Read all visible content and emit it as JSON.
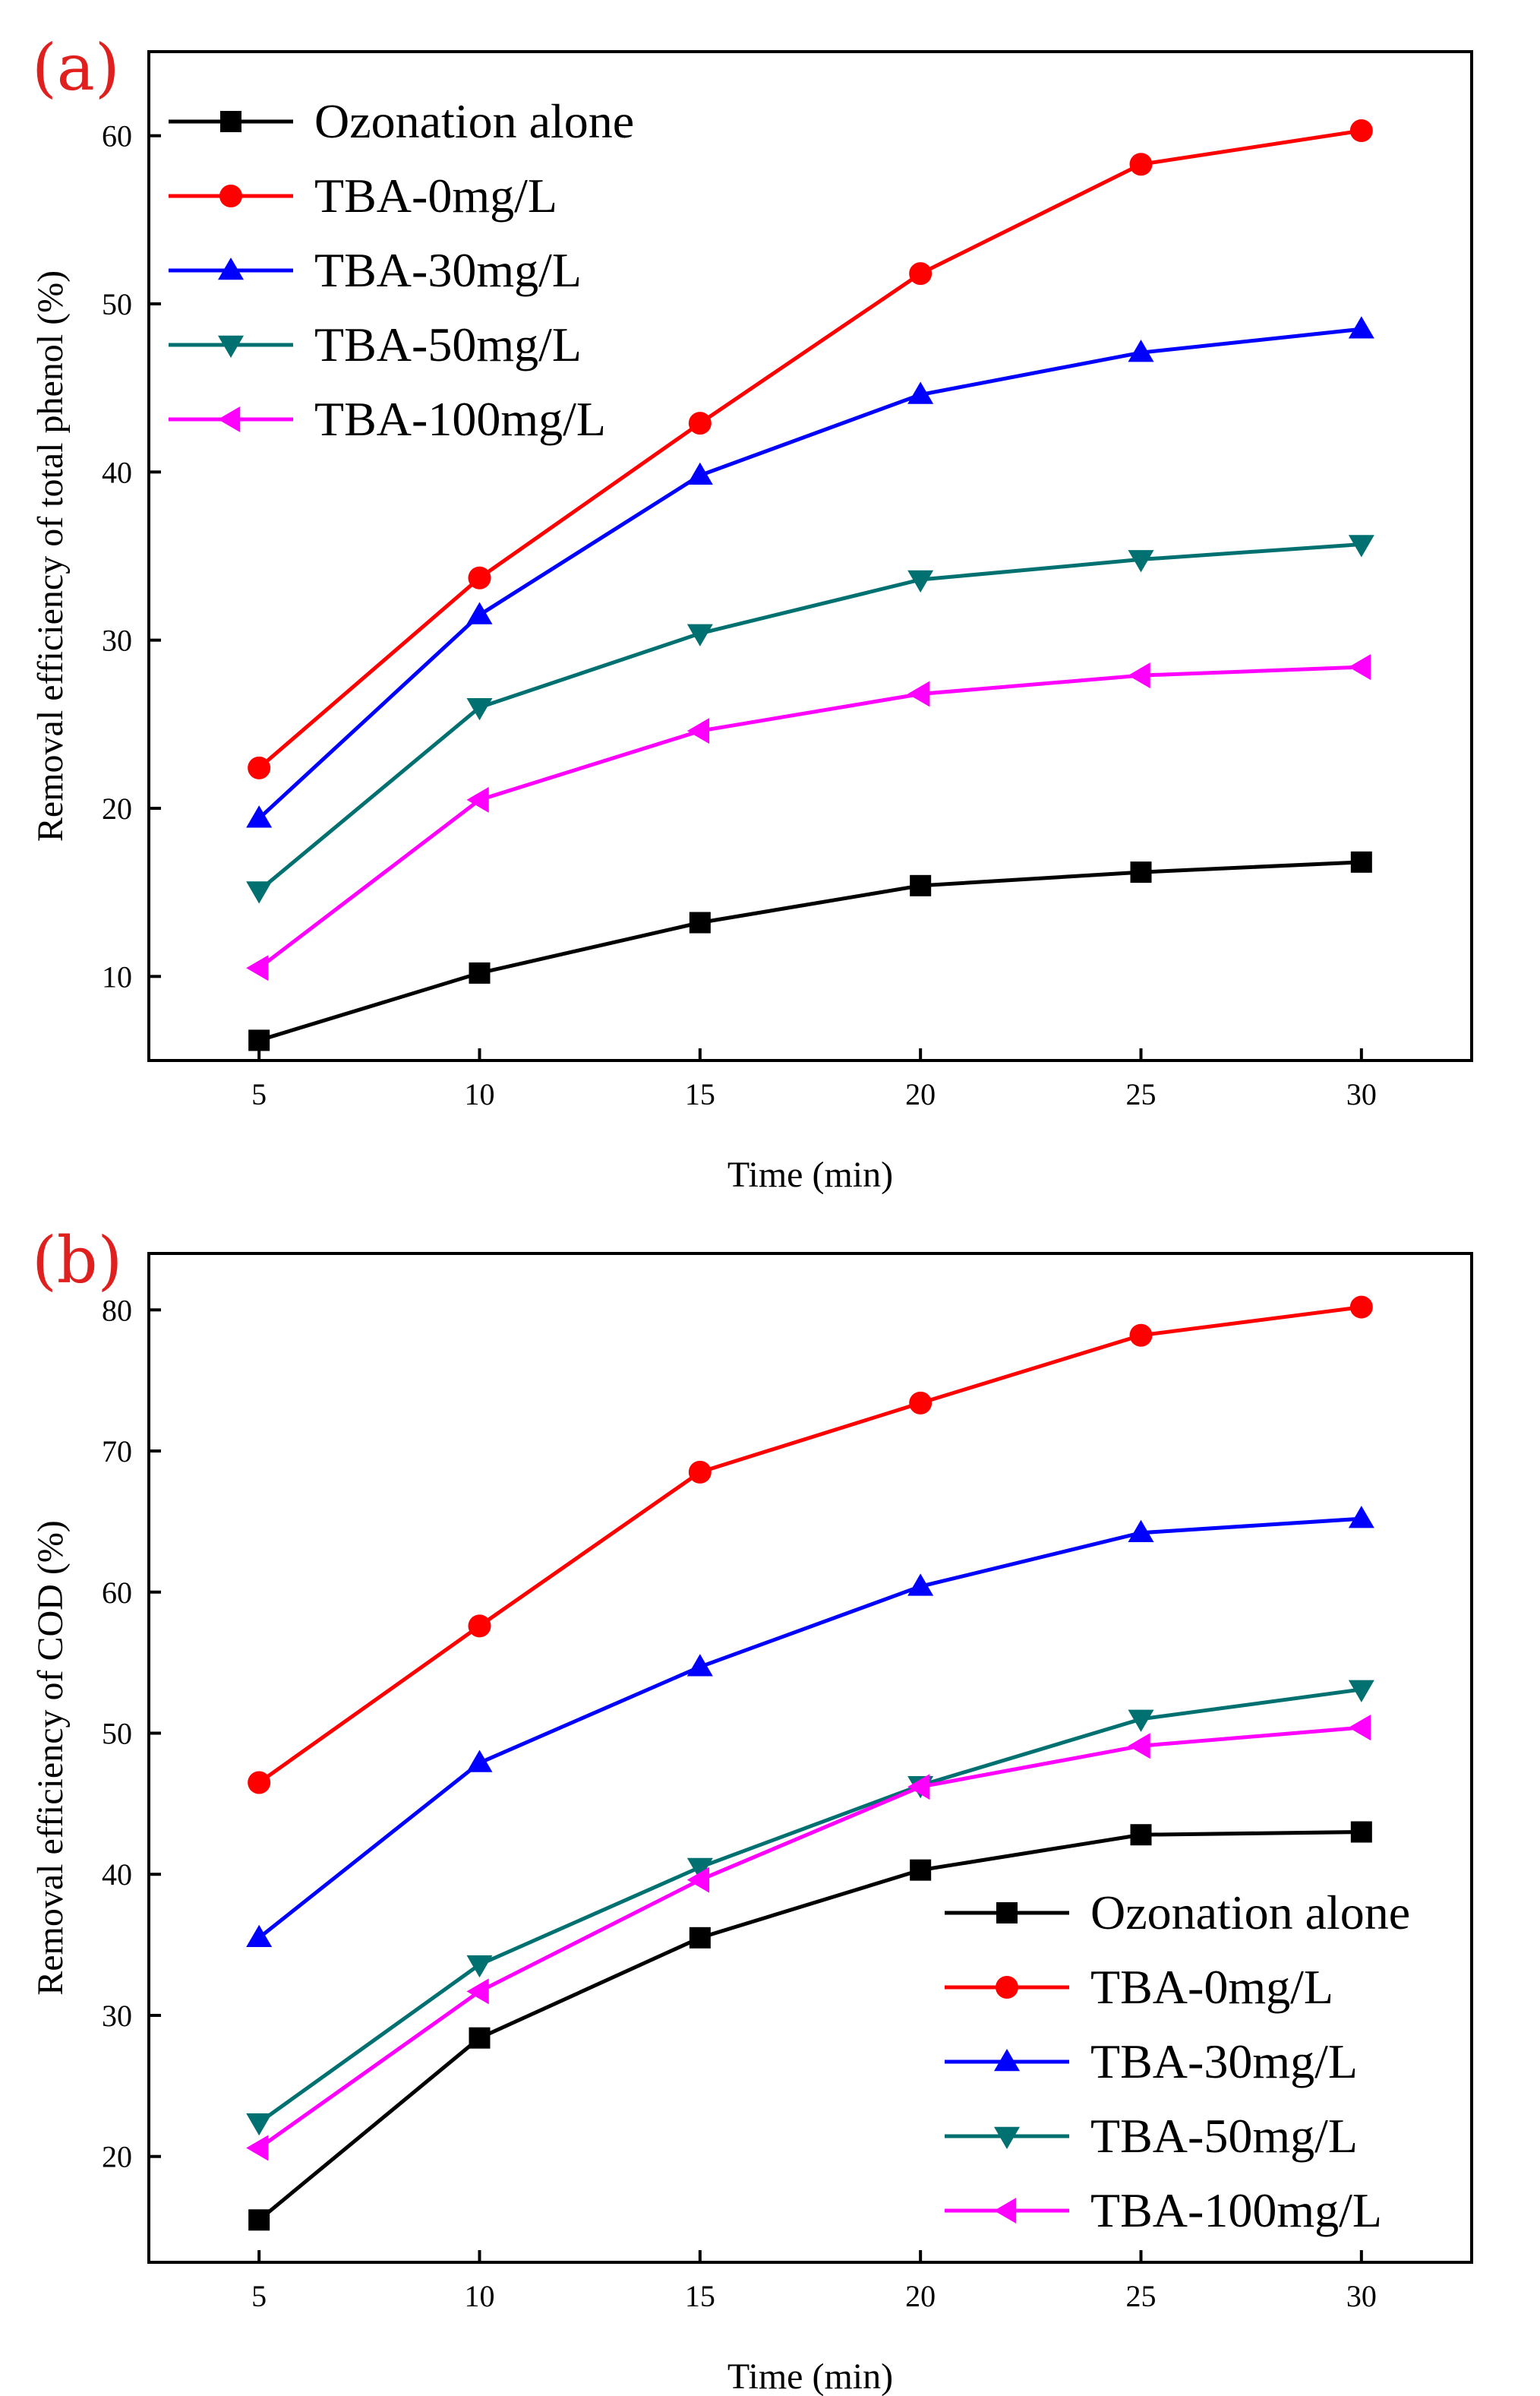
{
  "chart_data": [
    {
      "panel_label": "(a)",
      "type": "line",
      "title": "",
      "xlabel": "Time (min)",
      "ylabel": "Removal efficiency of total phenol (%)",
      "xlim": [
        2.5,
        32.5
      ],
      "ylim": [
        5,
        65
      ],
      "xticks": [
        5,
        10,
        15,
        20,
        25,
        30
      ],
      "yticks": [
        10,
        20,
        30,
        40,
        50,
        60
      ],
      "x": [
        5,
        10,
        15,
        20,
        25,
        30
      ],
      "legend_position": "top-left",
      "series": [
        {
          "name": "Ozonation alone",
          "color": "#000000",
          "marker": "square",
          "values": [
            6.2,
            10.2,
            13.2,
            15.4,
            16.2,
            16.8
          ]
        },
        {
          "name": "TBA-0mg/L",
          "color": "#ff0000",
          "marker": "circle",
          "values": [
            22.4,
            33.7,
            42.9,
            51.8,
            58.3,
            60.3
          ]
        },
        {
          "name": "TBA-30mg/L",
          "color": "#0000ff",
          "marker": "triangle-up",
          "values": [
            19.4,
            31.5,
            39.8,
            44.6,
            47.1,
            48.5
          ]
        },
        {
          "name": "TBA-50mg/L",
          "color": "#007070",
          "marker": "triangle-down",
          "values": [
            15.1,
            26.0,
            30.4,
            33.6,
            34.8,
            35.7
          ]
        },
        {
          "name": "TBA-100mg/L",
          "color": "#ff00ff",
          "marker": "triangle-left",
          "values": [
            10.5,
            20.5,
            24.6,
            26.8,
            27.9,
            28.4
          ]
        }
      ]
    },
    {
      "panel_label": "(b)",
      "type": "line",
      "title": "",
      "xlabel": "Time (min)",
      "ylabel": "Removal efficiency of COD (%)",
      "xlim": [
        2.5,
        32.5
      ],
      "ylim": [
        12.5,
        84
      ],
      "xticks": [
        5,
        10,
        15,
        20,
        25,
        30
      ],
      "yticks": [
        20,
        30,
        40,
        50,
        60,
        70,
        80
      ],
      "x": [
        5,
        10,
        15,
        20,
        25,
        30
      ],
      "legend_position": "bottom-right",
      "series": [
        {
          "name": "Ozonation alone",
          "color": "#000000",
          "marker": "square",
          "values": [
            15.5,
            28.4,
            35.5,
            40.3,
            42.8,
            43.0
          ]
        },
        {
          "name": "TBA-0mg/L",
          "color": "#ff0000",
          "marker": "circle",
          "values": [
            46.5,
            57.6,
            68.5,
            73.4,
            78.2,
            80.2
          ]
        },
        {
          "name": "TBA-30mg/L",
          "color": "#0000ff",
          "marker": "triangle-up",
          "values": [
            35.5,
            47.9,
            54.7,
            60.4,
            64.2,
            65.2
          ]
        },
        {
          "name": "TBA-50mg/L",
          "color": "#007070",
          "marker": "triangle-down",
          "values": [
            22.4,
            33.6,
            40.5,
            46.3,
            51.0,
            53.1
          ]
        },
        {
          "name": "TBA-100mg/L",
          "color": "#ff00ff",
          "marker": "triangle-left",
          "values": [
            20.6,
            31.7,
            39.6,
            46.2,
            49.1,
            50.4
          ]
        }
      ]
    }
  ]
}
